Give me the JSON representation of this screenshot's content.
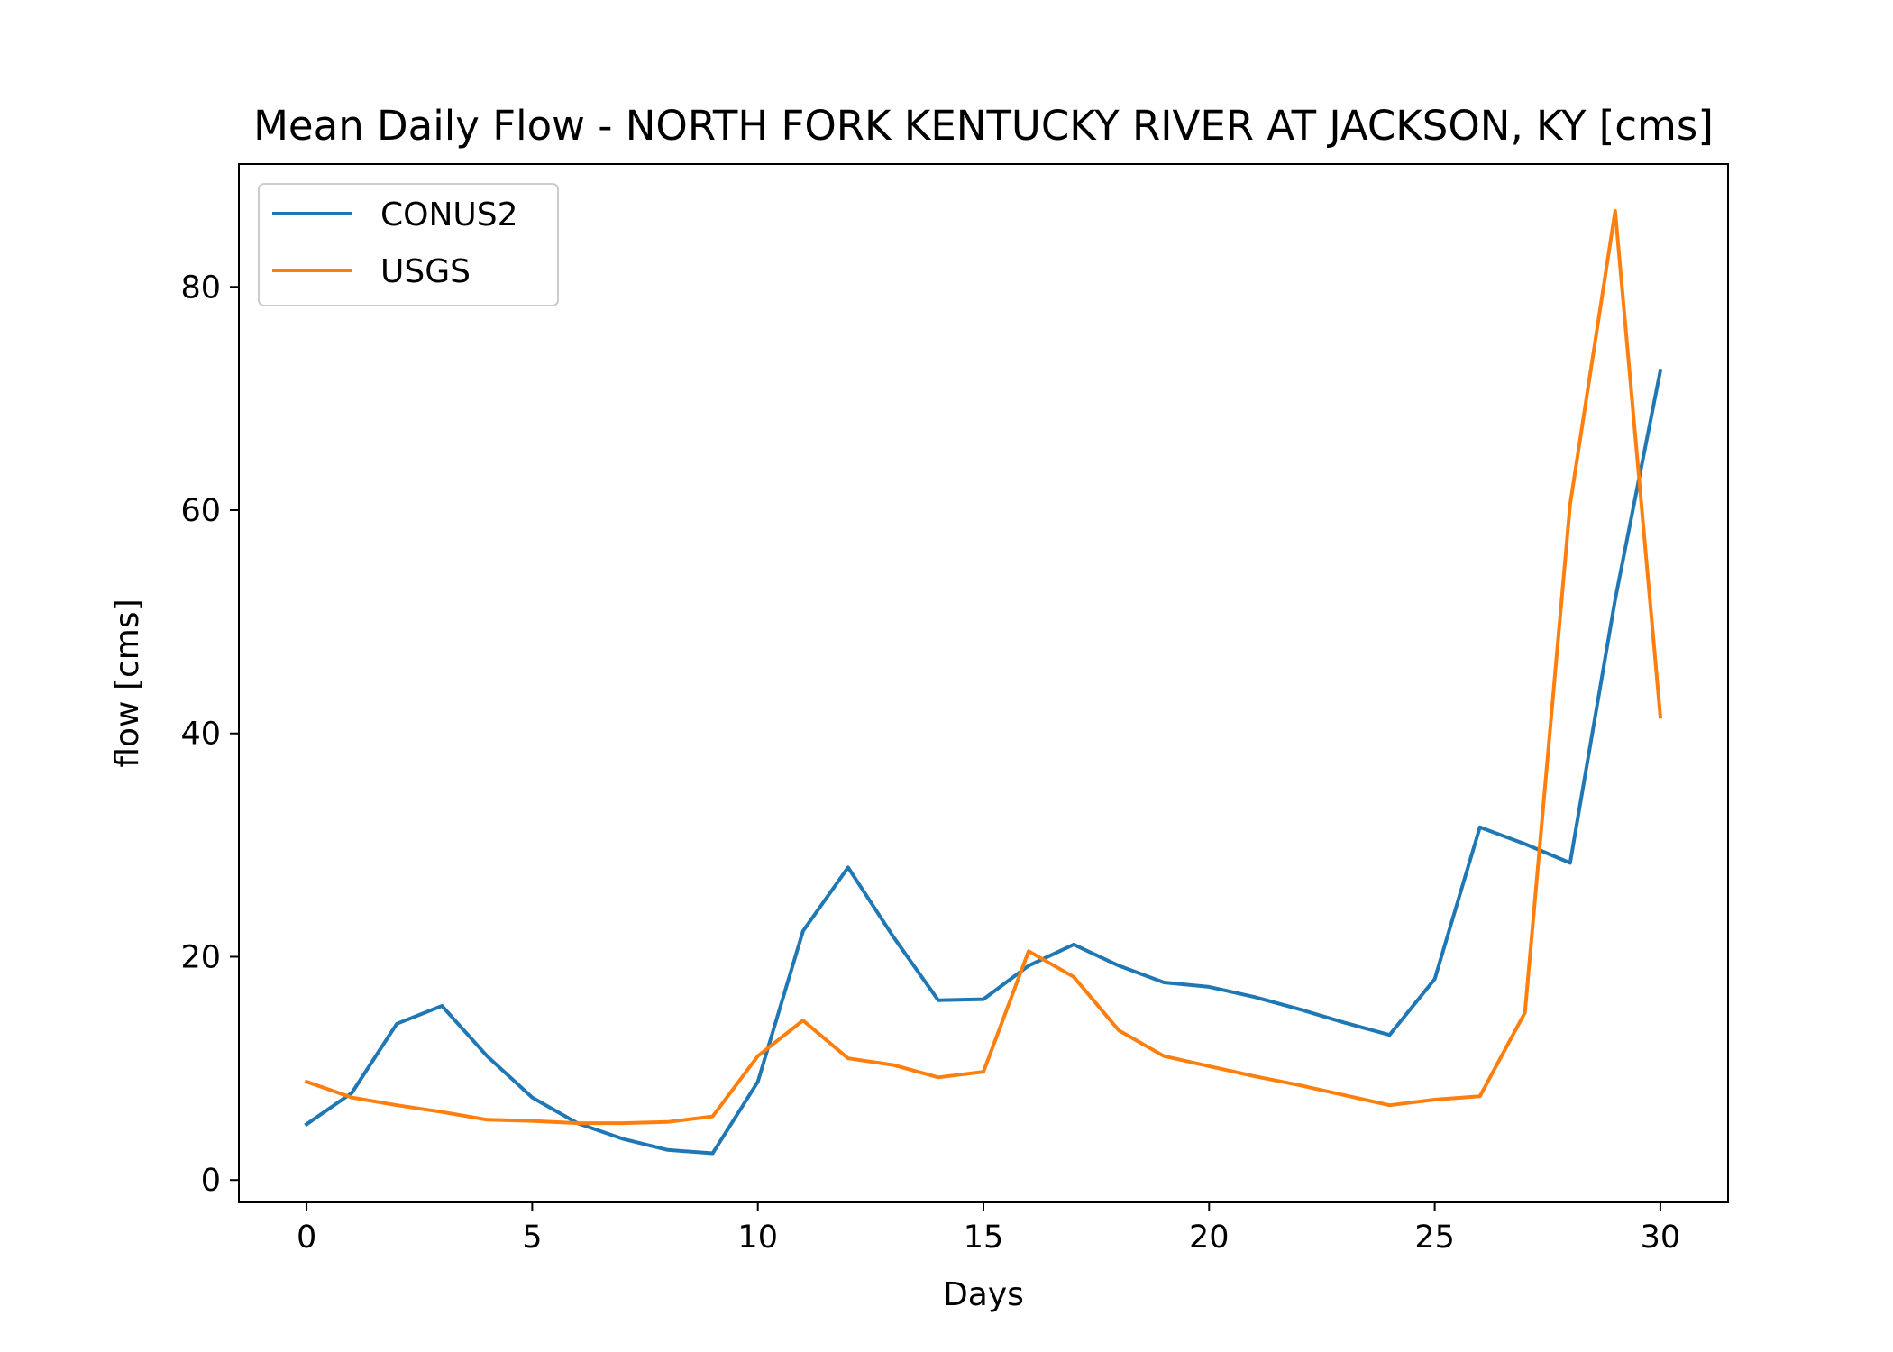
{
  "chart_data": {
    "type": "line",
    "title": "Mean Daily Flow - NORTH FORK KENTUCKY RIVER AT JACKSON, KY [cms]",
    "xlabel": "Days",
    "ylabel": "flow [cms]",
    "xlim": [
      -1.5,
      31.5
    ],
    "ylim": [
      -2,
      91
    ],
    "xticks": [
      0,
      5,
      10,
      15,
      20,
      25,
      30
    ],
    "yticks": [
      0,
      20,
      40,
      60,
      80
    ],
    "grid": false,
    "legend_position": "upper-left",
    "x": [
      0,
      1,
      2,
      3,
      4,
      5,
      6,
      7,
      8,
      9,
      10,
      11,
      12,
      13,
      14,
      15,
      16,
      17,
      18,
      19,
      20,
      21,
      22,
      23,
      24,
      25,
      26,
      27,
      28,
      29,
      30
    ],
    "series": [
      {
        "name": "CONUS2",
        "color": "#1f77b4",
        "values": [
          5.0,
          7.8,
          14.0,
          15.6,
          11.1,
          7.4,
          5.1,
          3.7,
          2.7,
          2.4,
          8.8,
          22.3,
          28.0,
          21.8,
          16.1,
          16.2,
          19.2,
          21.1,
          19.2,
          17.7,
          17.3,
          16.4,
          15.3,
          14.1,
          13.0,
          18.0,
          31.6,
          30.1,
          28.4,
          52.0,
          72.5
        ]
      },
      {
        "name": "USGS",
        "color": "#ff7f0e",
        "values": [
          8.8,
          7.4,
          6.7,
          6.1,
          5.4,
          5.3,
          5.1,
          5.1,
          5.2,
          5.7,
          11.1,
          14.3,
          10.9,
          10.3,
          9.2,
          9.7,
          20.5,
          18.2,
          13.4,
          11.1,
          10.2,
          9.3,
          8.5,
          7.6,
          6.7,
          7.2,
          7.5,
          15.0,
          60.5,
          86.8,
          41.5
        ]
      }
    ]
  }
}
